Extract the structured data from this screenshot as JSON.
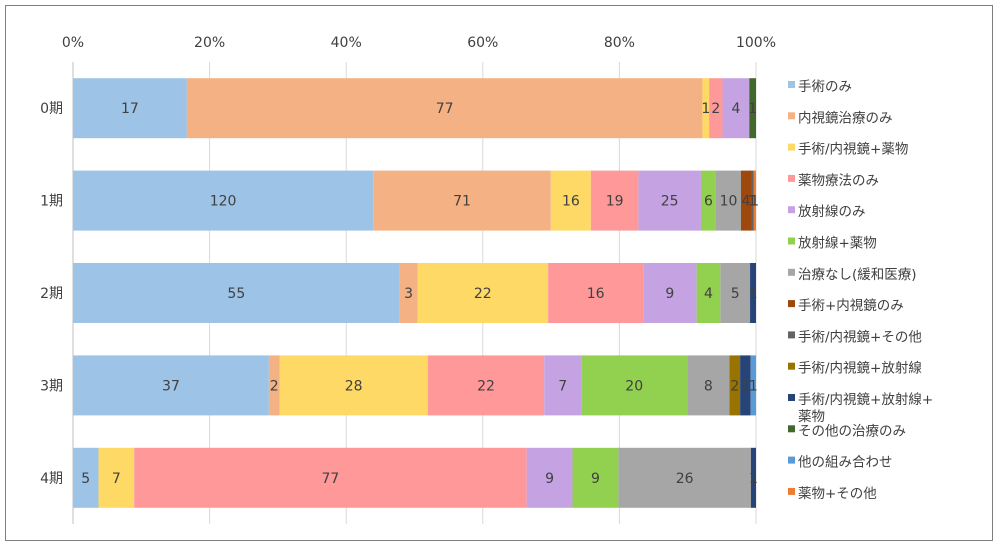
{
  "chart_data": {
    "type": "bar",
    "orientation": "horizontal",
    "stacking": "percent",
    "title": "",
    "xlabel": "",
    "ylabel": "",
    "xlim": [
      0,
      100
    ],
    "x_ticks": [
      "0%",
      "20%",
      "40%",
      "60%",
      "80%",
      "100%"
    ],
    "categories": [
      "0期",
      "1期",
      "2期",
      "3期",
      "4期"
    ],
    "legend_position": "right",
    "series": [
      {
        "name": "手術のみ",
        "color": "#9dc3e6",
        "values": [
          17,
          120,
          55,
          37,
          5
        ]
      },
      {
        "name": "内視鏡治療のみ",
        "color": "#f4b183",
        "values": [
          77,
          71,
          3,
          2,
          0
        ]
      },
      {
        "name": "手術/内視鏡+薬物",
        "color": "#ffd966",
        "values": [
          1,
          16,
          22,
          28,
          7
        ]
      },
      {
        "name": "薬物療法のみ",
        "color": "#ff9999",
        "values": [
          2,
          19,
          16,
          22,
          77
        ]
      },
      {
        "name": "放射線のみ",
        "color": "#c5a3e3",
        "values": [
          4,
          25,
          9,
          7,
          9
        ]
      },
      {
        "name": "放射線+薬物",
        "color": "#92d050",
        "values": [
          0,
          6,
          4,
          20,
          9
        ]
      },
      {
        "name": "治療なし(緩和医療)",
        "color": "#a6a6a6",
        "values": [
          0,
          10,
          5,
          8,
          26
        ]
      },
      {
        "name": "手術+内視鏡のみ",
        "color": "#9e480e",
        "values": [
          0,
          4,
          0,
          0,
          0
        ]
      },
      {
        "name": "手術/内視鏡+その他",
        "color": "#636363",
        "values": [
          0,
          1,
          0,
          0,
          0
        ]
      },
      {
        "name": "手術/内視鏡+放射線",
        "color": "#997300",
        "values": [
          0,
          0,
          0,
          2,
          0
        ]
      },
      {
        "name": "手術/内視鏡+放射線+薬物",
        "color": "#264478",
        "values": [
          0,
          0,
          1,
          2,
          1
        ]
      },
      {
        "name": "その他の治療のみ",
        "color": "#43682b",
        "values": [
          1,
          0,
          0,
          0,
          0
        ]
      },
      {
        "name": "他の組み合わせ",
        "color": "#5b9bd5",
        "values": [
          0,
          0,
          0,
          1,
          0
        ]
      },
      {
        "name": "薬物+その他",
        "color": "#ed7d31",
        "values": [
          0,
          1,
          0,
          0,
          0
        ]
      }
    ]
  }
}
